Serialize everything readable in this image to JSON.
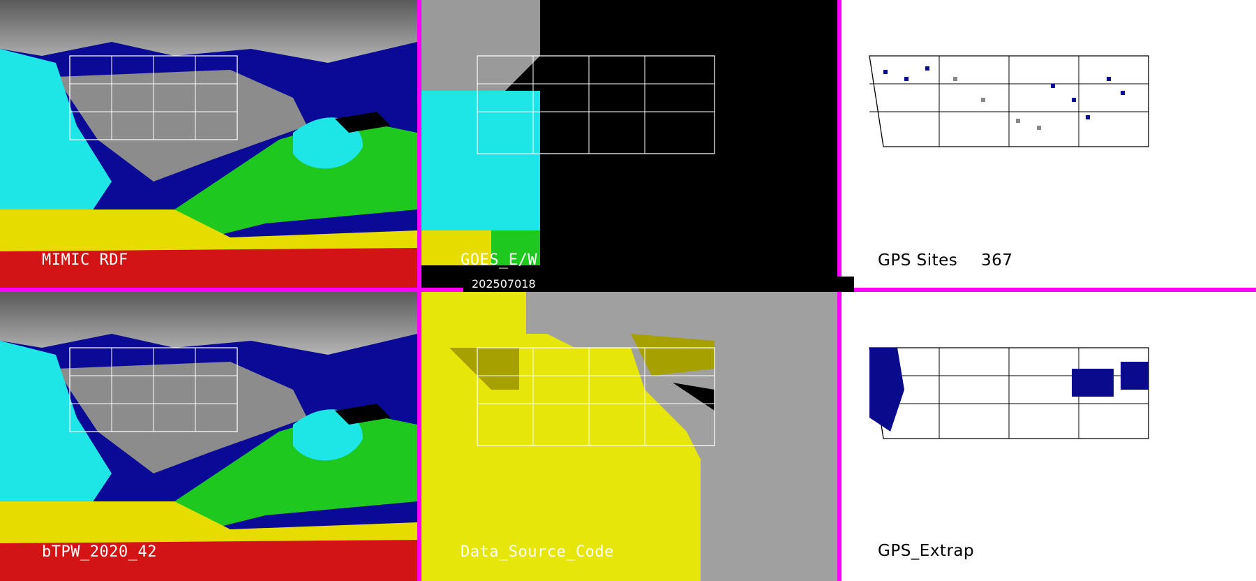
{
  "panels": {
    "mimic_rdf": {
      "label": "MIMIC RDF"
    },
    "goes_ew": {
      "label": "GOES_E/W",
      "date": "202507018"
    },
    "gps_sites": {
      "label": "GPS Sites",
      "count": "367"
    },
    "btpw": {
      "label": "bTPW_2020_42"
    },
    "data_source": {
      "label": "Data_Source_Code"
    },
    "gps_extrap": {
      "label": "GPS_Extrap"
    }
  },
  "colors": {
    "separator": "#ff00ff",
    "cyan": "#19e6e6",
    "green": "#1ec81e",
    "yellow": "#e6dc00",
    "red": "#d21414",
    "navy": "#0a0a8c",
    "gray": "#a0a0a0",
    "dataYellow": "#e6e60a",
    "olive": "#a6a000"
  }
}
